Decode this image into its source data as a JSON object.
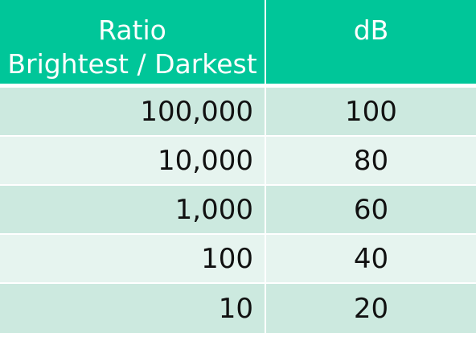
{
  "colors": {
    "header_bg": "#00c699",
    "row_dark": "#cce9df",
    "row_light": "#e6f4ef"
  },
  "table": {
    "headers": {
      "ratio_line1": "Ratio",
      "ratio_line2": "Brightest / Darkest",
      "db": "dB"
    },
    "rows": [
      {
        "ratio": "100,000",
        "db": "100"
      },
      {
        "ratio": "10,000",
        "db": "80"
      },
      {
        "ratio": "1,000",
        "db": "60"
      },
      {
        "ratio": "100",
        "db": "40"
      },
      {
        "ratio": "10",
        "db": "20"
      }
    ]
  }
}
